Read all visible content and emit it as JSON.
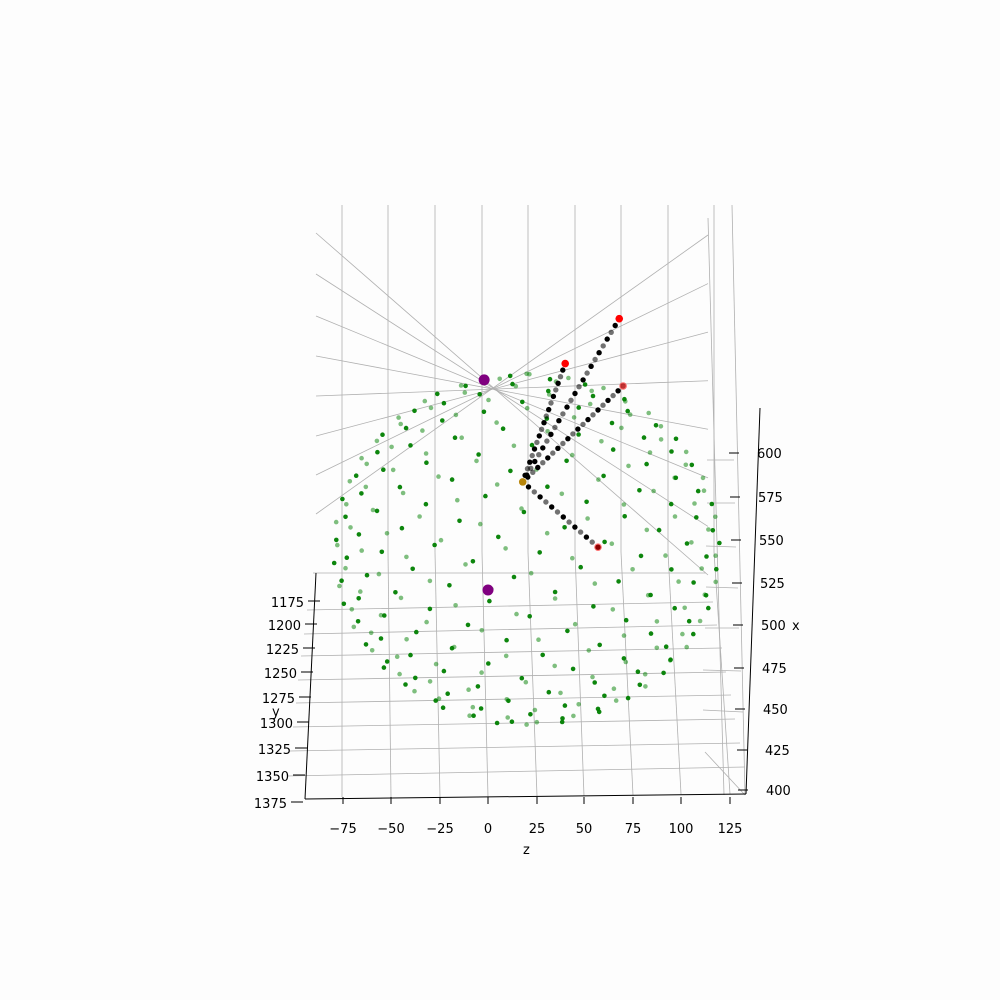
{
  "chart_data": {
    "type": "scatter",
    "title": "",
    "xlabel": "x",
    "ylabel": "y",
    "zlabel": "z",
    "xlim": [
      400,
      615
    ],
    "ylim": [
      1170,
      1378
    ],
    "zlim": [
      -90,
      132
    ],
    "x_ticks": [
      "400",
      "425",
      "450",
      "475",
      "500",
      "525",
      "550",
      "575",
      "600"
    ],
    "y_ticks": [
      "1175",
      "1200",
      "1225",
      "1250",
      "1275",
      "1300",
      "1325",
      "1350",
      "1375"
    ],
    "z_ticks": [
      "−75",
      "−50",
      "−25",
      "0",
      "25",
      "50",
      "75",
      "100",
      "125"
    ],
    "grid": true,
    "legend": "none",
    "colors": {
      "sphere": "#008000",
      "centers": "#800080",
      "path": "#000000",
      "endpoints": "#ff0000",
      "junction": "#b8860b",
      "grid": "#b0b0b0",
      "background": "#fdfdfd"
    },
    "series": [
      {
        "color": "#008000",
        "description": "sphere surface sample points (~300), approx. center (z=20, x=507), radius ~100",
        "center_z": 20,
        "center_x": 507,
        "radius": 100,
        "count": 300
      },
      {
        "color": "#800080",
        "points": [
          {
            "z": -2,
            "x": 590
          },
          {
            "z": 0,
            "x": 487
          }
        ]
      },
      {
        "color": "#000000",
        "paths": [
          {
            "from": {
              "z": 18,
              "x": 540
            },
            "to": {
              "z": 40,
              "x": 598
            },
            "steps": 18
          },
          {
            "from": {
              "z": 18,
              "x": 540
            },
            "to": {
              "z": 68,
              "x": 620
            },
            "steps": 24
          },
          {
            "from": {
              "z": 18,
              "x": 540
            },
            "to": {
              "z": 70,
              "x": 587
            },
            "steps": 20
          },
          {
            "from": {
              "z": 18,
              "x": 540
            },
            "to": {
              "z": 57,
              "x": 508
            },
            "steps": 13
          }
        ]
      },
      {
        "color": "#ff0000",
        "points": [
          {
            "z": 40,
            "x": 598
          },
          {
            "z": 70,
            "x": 587
          },
          {
            "z": 68,
            "x": 620
          },
          {
            "z": 57,
            "x": 508
          }
        ]
      },
      {
        "color": "#b8860b",
        "points": [
          {
            "z": 18,
            "x": 540
          }
        ]
      }
    ]
  }
}
